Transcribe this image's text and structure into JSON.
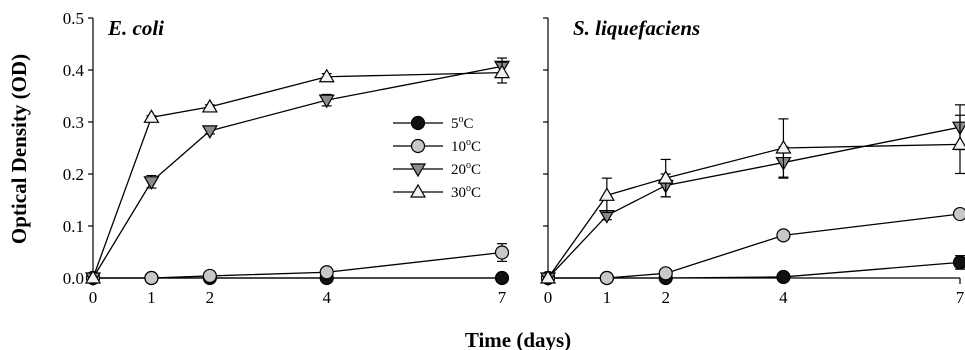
{
  "shared": {
    "ylabel": "Optical Density (OD)",
    "xlabel": "Time (days)",
    "y_ticks": [
      "0.0",
      "0.1",
      "0.2",
      "0.3",
      "0.4",
      "0.5"
    ],
    "x_ticks": [
      "0",
      "1",
      "2",
      "4",
      "7"
    ]
  },
  "legend": {
    "placement": "center-right of left panel",
    "items": [
      {
        "label_main": "5",
        "label_sup": "o",
        "label_unit": "C",
        "marker": "circle",
        "fill": "#111111"
      },
      {
        "label_main": "10",
        "label_sup": "o",
        "label_unit": "C",
        "marker": "circle",
        "fill": "#c8c8c8"
      },
      {
        "label_main": "20",
        "label_sup": "o",
        "label_unit": "C",
        "marker": "triangle-down",
        "fill": "#8c8c8c"
      },
      {
        "label_main": "30",
        "label_sup": "o",
        "label_unit": "C",
        "marker": "triangle-up",
        "fill": "#f2f2f2"
      }
    ]
  },
  "chart_data": [
    {
      "type": "line",
      "title": "E. coli",
      "xlabel": "Time (days)",
      "ylabel": "Optical Density (OD)",
      "x": [
        0,
        1,
        2,
        4,
        7
      ],
      "xlim": [
        0,
        7
      ],
      "ylim": [
        0,
        0.5
      ],
      "grid": false,
      "series": [
        {
          "name": "5°C",
          "values": [
            0.0,
            0.0,
            0.0,
            0.0,
            0.0
          ],
          "errors": [
            0,
            0,
            0,
            0,
            0
          ]
        },
        {
          "name": "10°C",
          "values": [
            0.0,
            0.0,
            0.004,
            0.011,
            0.049
          ],
          "errors": [
            0,
            0,
            0,
            0.003,
            0.017
          ]
        },
        {
          "name": "20°C",
          "values": [
            0.0,
            0.185,
            0.283,
            0.342,
            0.407
          ],
          "errors": [
            0,
            0.012,
            0.006,
            0.011,
            0.016
          ]
        },
        {
          "name": "30°C",
          "values": [
            0.0,
            0.309,
            0.329,
            0.387,
            0.395
          ],
          "errors": [
            0,
            0.003,
            0.004,
            0.006,
            0.02
          ]
        }
      ]
    },
    {
      "type": "line",
      "title": "S. liquefaciens",
      "xlabel": "Time (days)",
      "ylabel": "Optical Density (OD)",
      "x": [
        0,
        1,
        2,
        4,
        7
      ],
      "xlim": [
        0,
        7
      ],
      "ylim": [
        0,
        0.5
      ],
      "grid": false,
      "series": [
        {
          "name": "5°C",
          "values": [
            0.0,
            0.0,
            0.0,
            0.002,
            0.03
          ],
          "errors": [
            0,
            0,
            0,
            0.002,
            0.013
          ]
        },
        {
          "name": "10°C",
          "values": [
            0.0,
            0.0,
            0.009,
            0.082,
            0.123
          ],
          "errors": [
            0,
            0,
            0.003,
            0.005,
            0.006
          ]
        },
        {
          "name": "20°C",
          "values": [
            0.0,
            0.12,
            0.178,
            0.222,
            0.29
          ],
          "errors": [
            0,
            0.008,
            0.022,
            0.03,
            0.043
          ]
        },
        {
          "name": "30°C",
          "values": [
            0.0,
            0.159,
            0.192,
            0.25,
            0.257
          ],
          "errors": [
            0,
            0.033,
            0.036,
            0.056,
            0.056
          ]
        }
      ]
    }
  ]
}
